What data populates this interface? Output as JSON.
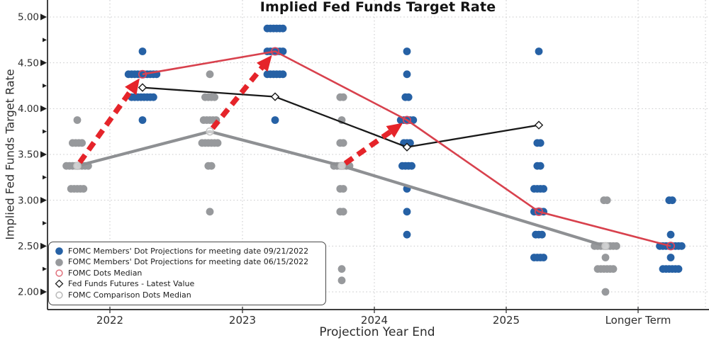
{
  "title": "Implied Fed Funds Target Rate",
  "axes": {
    "x_label": "Projection Year End",
    "y_label": "Implied Fed Funds Target Rate",
    "x_tick_labels": [
      "2022",
      "2023",
      "2024",
      "2025",
      "Longer Term"
    ],
    "y_tick_labels": [
      "2.00",
      "2.50",
      "3.00",
      "3.50",
      "4.00",
      "4.50",
      "5.00"
    ]
  },
  "legend": {
    "items": [
      {
        "label": "FOMC Members' Dot Projections for meeting date 09/21/2022",
        "marker": "filled-circle",
        "color": "#2661a5"
      },
      {
        "label": "FOMC Members' Dot Projections for meeting date 06/15/2022",
        "marker": "filled-circle",
        "color": "#97999c"
      },
      {
        "label": "FOMC Dots Median",
        "marker": "open-circle",
        "color": "#e0707c"
      },
      {
        "label": "Fed Funds Futures - Latest Value",
        "marker": "open-diamond",
        "color": "#222222"
      },
      {
        "label": "FOMC Comparison Dots Median",
        "marker": "open-circle",
        "color": "#b9b9b9"
      }
    ]
  },
  "chart_data": {
    "type": "scatter",
    "title": "Implied Fed Funds Target Rate",
    "xlabel": "Projection Year End",
    "ylabel": "Implied Fed Funds Target Rate",
    "categories": [
      "2022",
      "2023",
      "2024",
      "2025",
      "Longer Term"
    ],
    "ylim": [
      1.8,
      5.15
    ],
    "y_major_ticks": [
      2.0,
      2.5,
      3.0,
      3.5,
      4.0,
      4.5,
      5.0
    ],
    "y_minor_ticks": [
      2.25,
      2.75,
      3.25,
      3.75,
      4.25,
      4.75
    ],
    "grid": "dotted-major-both-axes",
    "legend_position": "lower-left",
    "colors": {
      "dot_blue": "#2661a5",
      "dot_gray": "#97999c",
      "median_line": "#d8414d",
      "futures_line": "#191919",
      "comparison_line": "#8e9093",
      "arrow": "#e5242a",
      "grid": "#c9cacb"
    },
    "dot_series": [
      {
        "name": "FOMC Members' Dot Projections for meeting date 09/21/2022",
        "side": "right",
        "color_key": "dot_blue",
        "points": [
          [
            0,
            4.625,
            1
          ],
          [
            0,
            4.375,
            10
          ],
          [
            0,
            4.125,
            8
          ],
          [
            0,
            3.875,
            1
          ],
          [
            1,
            4.875,
            6
          ],
          [
            1,
            4.625,
            6
          ],
          [
            1,
            4.375,
            6
          ],
          [
            1,
            3.875,
            1
          ],
          [
            2,
            4.625,
            1
          ],
          [
            2,
            4.375,
            1
          ],
          [
            2,
            4.125,
            2
          ],
          [
            2,
            3.875,
            5
          ],
          [
            2,
            3.625,
            3
          ],
          [
            2,
            3.375,
            4
          ],
          [
            2,
            3.125,
            1
          ],
          [
            2,
            2.875,
            1
          ],
          [
            2,
            2.625,
            1
          ],
          [
            3,
            4.625,
            1
          ],
          [
            3,
            3.625,
            2
          ],
          [
            3,
            3.375,
            2
          ],
          [
            3,
            3.125,
            4
          ],
          [
            3,
            2.875,
            4
          ],
          [
            3,
            2.625,
            3
          ],
          [
            3,
            2.375,
            4
          ],
          [
            4,
            3.0,
            2
          ],
          [
            4,
            2.625,
            1
          ],
          [
            4,
            2.5,
            8
          ],
          [
            4,
            2.375,
            1
          ],
          [
            4,
            2.25,
            6
          ]
        ]
      },
      {
        "name": "FOMC Members' Dot Projections for meeting date 06/15/2022",
        "side": "left",
        "color_key": "dot_gray",
        "points": [
          [
            0,
            3.875,
            1
          ],
          [
            0,
            3.625,
            4
          ],
          [
            0,
            3.375,
            8
          ],
          [
            0,
            3.125,
            5
          ],
          [
            1,
            4.375,
            1
          ],
          [
            1,
            4.125,
            4
          ],
          [
            1,
            3.875,
            5
          ],
          [
            1,
            3.625,
            6
          ],
          [
            1,
            3.375,
            2
          ],
          [
            1,
            2.875,
            1
          ],
          [
            2,
            4.125,
            2
          ],
          [
            2,
            3.875,
            1
          ],
          [
            2,
            3.625,
            2
          ],
          [
            2,
            3.375,
            6
          ],
          [
            2,
            3.125,
            2
          ],
          [
            2,
            2.875,
            2
          ],
          [
            2,
            2.25,
            1
          ],
          [
            2,
            2.125,
            1
          ],
          [
            4,
            3.0,
            2
          ],
          [
            4,
            2.5,
            8
          ],
          [
            4,
            2.375,
            1
          ],
          [
            4,
            2.25,
            6
          ],
          [
            4,
            2.0,
            1
          ]
        ]
      }
    ],
    "line_series": [
      {
        "name": "FOMC Comparison Dots Median",
        "side": "left",
        "color_key": "comparison_line",
        "marker": "open-circle-light",
        "width": 4.2,
        "points": [
          [
            0,
            3.375
          ],
          [
            1,
            3.75
          ],
          [
            2,
            3.375
          ],
          [
            4,
            2.5
          ]
        ]
      },
      {
        "name": "Fed Funds Futures - Latest Value",
        "side": "right",
        "color_key": "futures_line",
        "marker": "open-diamond",
        "width": 2.3,
        "points": [
          [
            0,
            4.23
          ],
          [
            1,
            4.13
          ],
          [
            2,
            3.58
          ],
          [
            3,
            3.82
          ]
        ]
      },
      {
        "name": "FOMC Dots Median",
        "side": "right",
        "color_key": "median_line",
        "marker": "open-circle-red",
        "width": 2.6,
        "points": [
          [
            0,
            4.375
          ],
          [
            1,
            4.625
          ],
          [
            2,
            3.875
          ],
          [
            3,
            2.875
          ],
          [
            4,
            2.5
          ]
        ]
      }
    ],
    "arrows": [
      {
        "category_index": 0,
        "from_value": 3.375,
        "to_value": 4.375
      },
      {
        "category_index": 1,
        "from_value": 3.75,
        "to_value": 4.625
      },
      {
        "category_index": 2,
        "from_value": 3.375,
        "to_value": 3.875
      }
    ]
  }
}
